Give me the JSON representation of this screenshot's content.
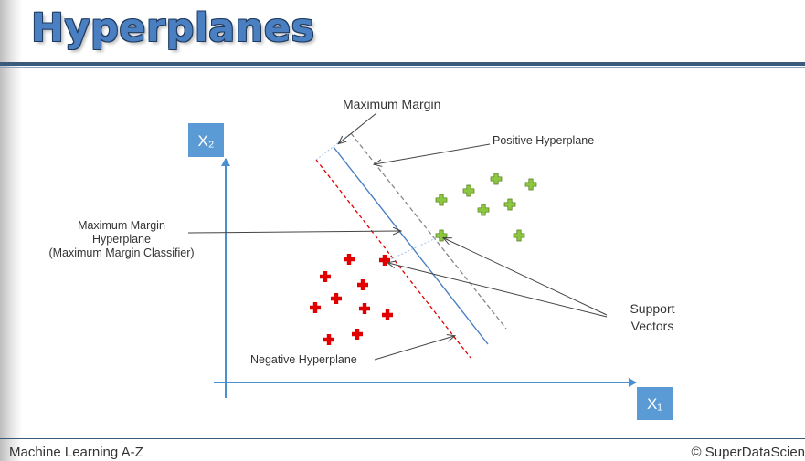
{
  "slide": {
    "title": "Hyperplanes",
    "footer_left": "Machine Learning A-Z",
    "footer_right": "© SuperDataScien"
  },
  "diagram": {
    "axis_x_label": "X₁",
    "axis_y_label": "X₂",
    "labels": {
      "maximum_margin": "Maximum Margin",
      "positive_hyperplane": "Positive Hyperplane",
      "mm_hyperplane_line1": "Maximum Margin",
      "mm_hyperplane_line2": "Hyperplane",
      "mm_hyperplane_line3": "(Maximum Margin Classifier)",
      "support_vectors_line1": "Support",
      "support_vectors_line2": "Vectors",
      "negative_hyperplane": "Negative Hyperplane"
    },
    "colors": {
      "axis": "#4a90d0",
      "axis_box": "#5b9bd5",
      "positive_point": "#8dc63f",
      "negative_point": "#e00000",
      "hyperplane": "#4a7fc1",
      "negative_line": "#e00000",
      "positive_line": "#888888"
    }
  }
}
